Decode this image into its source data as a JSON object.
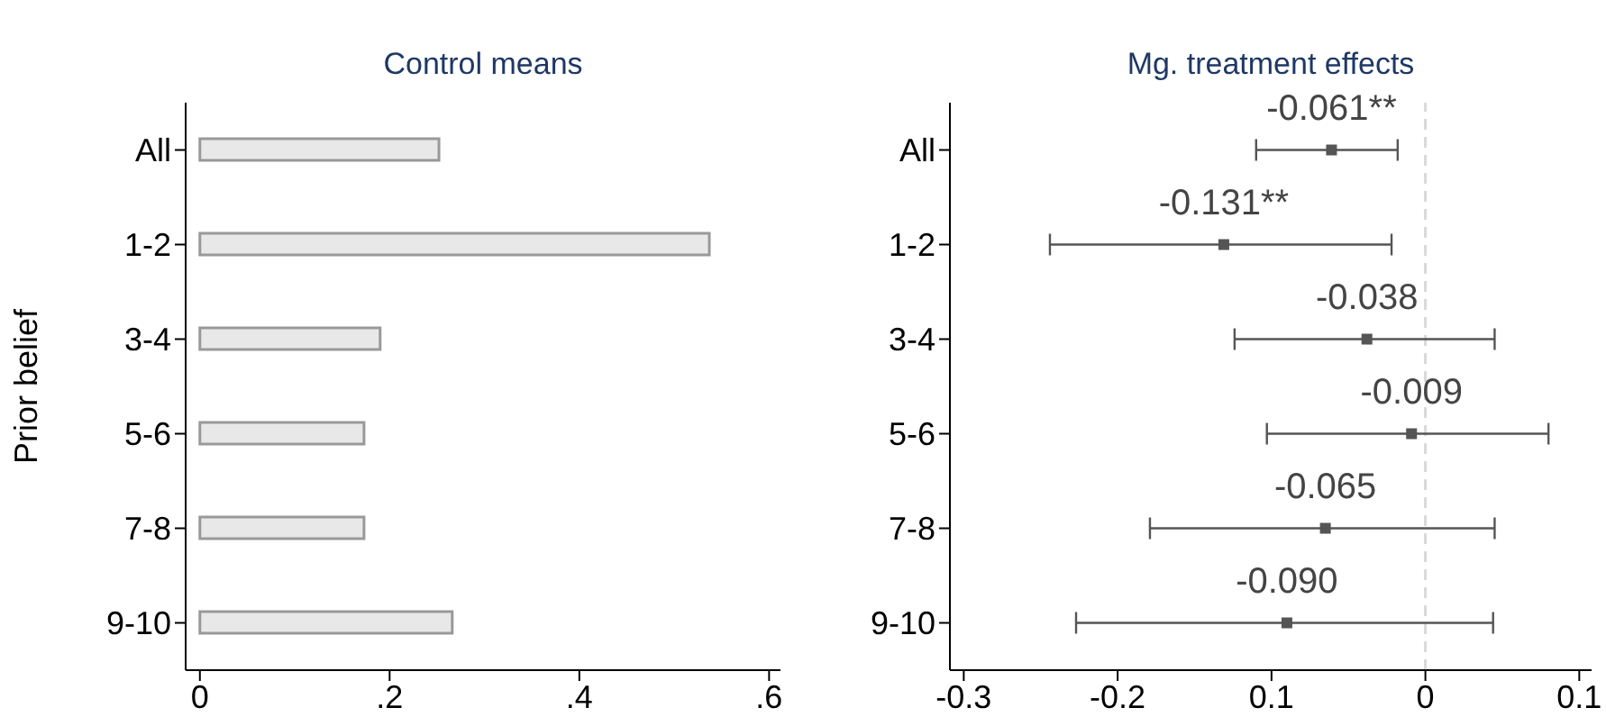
{
  "chart_data": [
    {
      "type": "bar",
      "orientation": "horizontal",
      "title": "Control means",
      "ylabel": "Prior belief",
      "categories": [
        "All",
        "1-2",
        "3-4",
        "5-6",
        "7-8",
        "9-10"
      ],
      "values": [
        0.252,
        0.537,
        0.19,
        0.173,
        0.173,
        0.266
      ],
      "color": "#e8e8e8",
      "xlim": [
        -0.015,
        0.612
      ],
      "xticks": [
        {
          "value": 0,
          "label": "0"
        },
        {
          "value": 0.2,
          "label": ".2"
        },
        {
          "value": 0.4,
          "label": ".4"
        },
        {
          "value": 0.6,
          "label": ".6"
        }
      ],
      "grid": false
    },
    {
      "type": "scatter",
      "orientation": "horizontal",
      "title": "Mg. treatment effects",
      "categories": [
        "All",
        "1-2",
        "3-4",
        "5-6",
        "7-8",
        "9-10"
      ],
      "values": [
        -0.061,
        -0.131,
        -0.038,
        -0.009,
        -0.065,
        -0.09
      ],
      "errors": [
        [
          -0.11,
          -0.018
        ],
        [
          -0.244,
          -0.022
        ],
        [
          -0.124,
          0.045
        ],
        [
          -0.103,
          0.08
        ],
        [
          -0.179,
          0.045
        ],
        [
          -0.227,
          0.044
        ]
      ],
      "value_labels": [
        "-0.061**",
        "-0.131**",
        "-0.038",
        "-0.009",
        "-0.065",
        "-0.090"
      ],
      "color": "#555555",
      "marker": "square",
      "xlim": [
        -0.309,
        0.108
      ],
      "xticks": [
        -0.3,
        -0.2,
        {
          "value": -0.1,
          "label": "0.1"
        },
        0,
        0.1
      ],
      "ref_lines": [
        {
          "axis": "x",
          "value": 0,
          "color": "#d9d9d9",
          "line_style": "dashed"
        }
      ],
      "grid": false
    }
  ]
}
